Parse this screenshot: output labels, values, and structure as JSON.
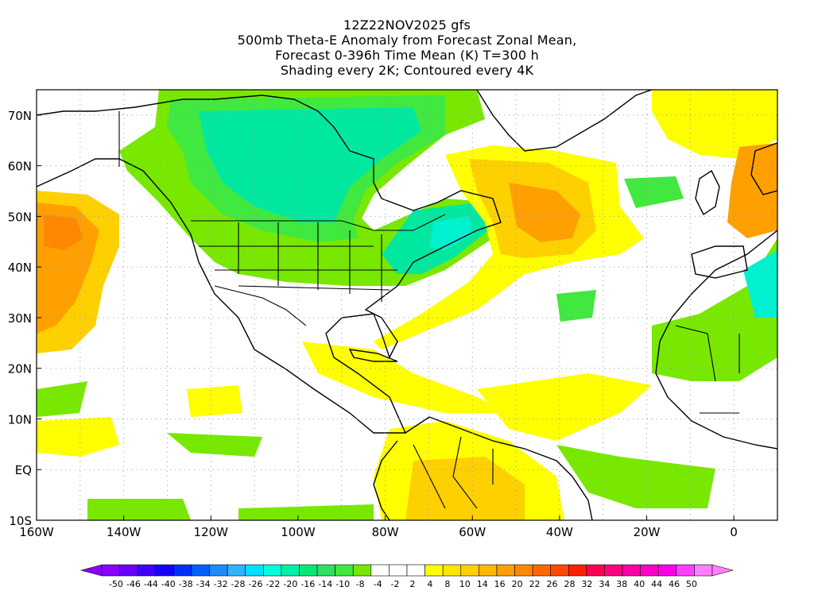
{
  "title": {
    "line1": "12Z22NOV2025 gfs",
    "line2": "500mb Theta-E Anomaly from Forecast Zonal Mean,",
    "line3": "Forecast 0-396h Time Mean (K) T=300 h",
    "line4": "Shading every 2K; Contoured every 4K"
  },
  "axes": {
    "lat_labels": [
      "70N",
      "60N",
      "50N",
      "40N",
      "30N",
      "20N",
      "10N",
      "EQ",
      "10S"
    ],
    "lon_labels": [
      "160W",
      "140W",
      "120W",
      "100W",
      "80W",
      "60W",
      "40W",
      "20W",
      "0"
    ]
  },
  "colorbar": {
    "labels": [
      "-50",
      "-46",
      "-44",
      "-40",
      "-38",
      "-34",
      "-32",
      "-28",
      "-26",
      "-22",
      "-20",
      "-16",
      "-14",
      "-10",
      "-8",
      "-4",
      "-2",
      "2",
      "4",
      "8",
      "10",
      "14",
      "16",
      "20",
      "22",
      "26",
      "28",
      "32",
      "34",
      "38",
      "40",
      "44",
      "46",
      "50"
    ],
    "colors": [
      "#8a00ff",
      "#6a00ff",
      "#4000ff",
      "#1800ff",
      "#0030ff",
      "#0060ff",
      "#1c8cff",
      "#30b4ff",
      "#00e0ff",
      "#00ffdc",
      "#00f0a8",
      "#00e878",
      "#30e060",
      "#40e840",
      "#78e800",
      "#ffffff",
      "#ffffff",
      "#ffffff",
      "#ffff00",
      "#ffe600",
      "#ffd000",
      "#ffb800",
      "#ffa000",
      "#ff8800",
      "#ff6800",
      "#ff4800",
      "#ff2000",
      "#ff0050",
      "#ff0080",
      "#ff00a8",
      "#ff00c8",
      "#ff00e6",
      "#ff40ff",
      "#ff80ff"
    ]
  },
  "shading_colors": {
    "green": "#78e800",
    "lightgreen": "#40e840",
    "teal": "#00e8a0",
    "cyan": "#00f0d0",
    "yellow": "#ffff00",
    "lightorange": "#ffd000",
    "orange": "#ffa000",
    "darkorange": "#ff8800"
  }
}
